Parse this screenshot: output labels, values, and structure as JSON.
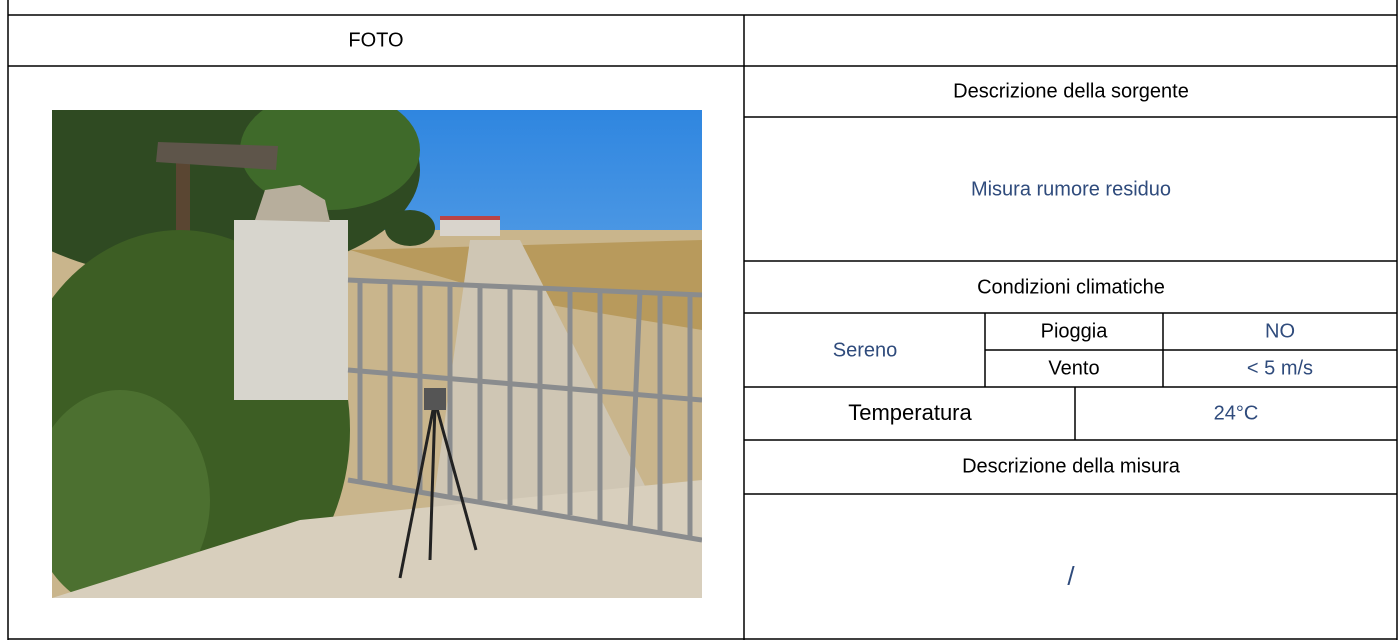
{
  "photo_label": "FOTO",
  "source": {
    "heading": "Descrizione della sorgente",
    "value": "Misura rumore residuo"
  },
  "climate": {
    "heading": "Condizioni climatiche",
    "sky": "Sereno",
    "rain": {
      "label": "Pioggia",
      "value": "NO"
    },
    "wind": {
      "label": "Vento",
      "value": "< 5 m/s"
    },
    "temperature": {
      "label": "Temperatura",
      "value": "24°C"
    }
  },
  "measurement": {
    "heading": "Descrizione della misura",
    "value": "/"
  }
}
